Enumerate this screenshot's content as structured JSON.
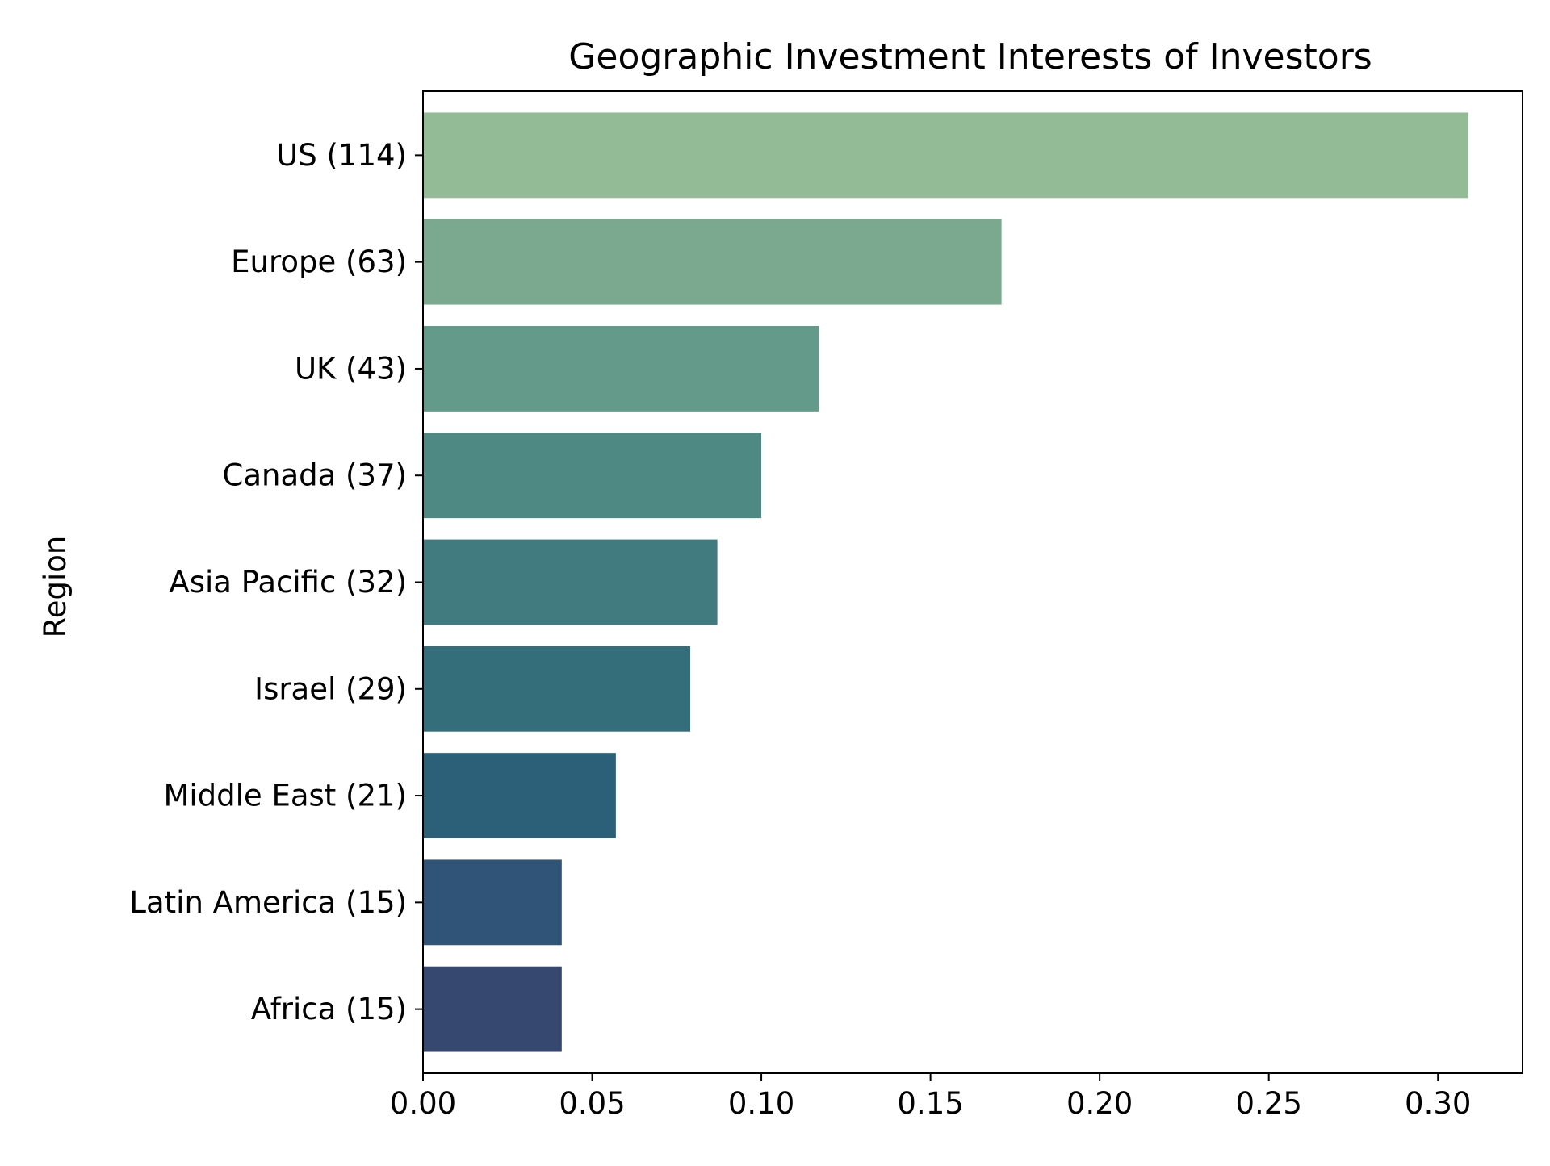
{
  "chart_data": {
    "type": "bar",
    "orientation": "horizontal",
    "title": "Geographic Investment Interests of Investors",
    "xlabel": "",
    "ylabel": "Region",
    "categories": [
      "US (114)",
      "Europe (63)",
      "UK (43)",
      "Canada (37)",
      "Asia Pacific (32)",
      "Israel (29)",
      "Middle East (21)",
      "Latin America (15)",
      "Africa (15)"
    ],
    "values": [
      0.309,
      0.171,
      0.117,
      0.1,
      0.087,
      0.079,
      0.057,
      0.041,
      0.041
    ],
    "colors": [
      "#92bb96",
      "#7aa990",
      "#639a89",
      "#4f8984",
      "#417b80",
      "#346e7b",
      "#2c6079",
      "#2f5477",
      "#374870"
    ],
    "xlim": [
      0,
      0.325
    ],
    "xticks": [
      0.0,
      0.05,
      0.1,
      0.15,
      0.2,
      0.25,
      0.3
    ],
    "xtick_labels": [
      "0.00",
      "0.05",
      "0.10",
      "0.15",
      "0.20",
      "0.25",
      "0.30"
    ],
    "grid": false,
    "legend": "none"
  }
}
